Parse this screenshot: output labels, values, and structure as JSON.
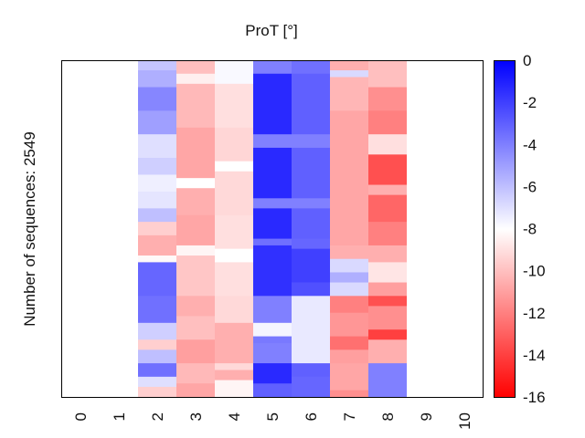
{
  "chart_data": {
    "type": "heatmap",
    "title": "ProT [°]",
    "xlabel": "",
    "ylabel": "Number of sequences: 2549",
    "x_tick_labels": [
      "0",
      "1",
      "2",
      "3",
      "4",
      "5",
      "6",
      "7",
      "8",
      "9",
      "10"
    ],
    "colorbar": {
      "min": -16,
      "max": 0,
      "ticks": [
        "0",
        "-2",
        "-4",
        "-6",
        "-8",
        "-10",
        "-12",
        "-14",
        "-16"
      ],
      "tick_values": [
        0,
        -2,
        -4,
        -6,
        -8,
        -10,
        -12,
        -14,
        -16
      ],
      "colormap": [
        "#ff0000",
        "#ffffff",
        "#0000ff"
      ]
    },
    "n_sequences": 2549,
    "columns": [
      {
        "x": 0,
        "segments": []
      },
      {
        "x": 1,
        "segments": []
      },
      {
        "x": 2,
        "segments": [
          {
            "from": 0.0,
            "to": 0.03,
            "value": -6.2
          },
          {
            "from": 0.03,
            "to": 0.08,
            "value": -5.5
          },
          {
            "from": 0.08,
            "to": 0.15,
            "value": -4.2
          },
          {
            "from": 0.15,
            "to": 0.22,
            "value": -5.0
          },
          {
            "from": 0.22,
            "to": 0.29,
            "value": -7.0
          },
          {
            "from": 0.29,
            "to": 0.34,
            "value": -6.5
          },
          {
            "from": 0.34,
            "to": 0.39,
            "value": -7.5
          },
          {
            "from": 0.39,
            "to": 0.44,
            "value": -7.2
          },
          {
            "from": 0.44,
            "to": 0.48,
            "value": -6.0
          },
          {
            "from": 0.48,
            "to": 0.52,
            "value": -9.5
          },
          {
            "from": 0.52,
            "to": 0.58,
            "value": -10.5
          },
          {
            "from": 0.58,
            "to": 0.6,
            "value": -8.2
          },
          {
            "from": 0.6,
            "to": 0.7,
            "value": -3.2
          },
          {
            "from": 0.7,
            "to": 0.78,
            "value": -3.5
          },
          {
            "from": 0.78,
            "to": 0.83,
            "value": -6.5
          },
          {
            "from": 0.83,
            "to": 0.86,
            "value": -9.5
          },
          {
            "from": 0.86,
            "to": 0.9,
            "value": -6.0
          },
          {
            "from": 0.9,
            "to": 0.94,
            "value": -3.5
          },
          {
            "from": 0.94,
            "to": 0.97,
            "value": -7.0
          },
          {
            "from": 0.97,
            "to": 1.0,
            "value": -9.5
          }
        ]
      },
      {
        "x": 3,
        "segments": [
          {
            "from": 0.0,
            "to": 0.04,
            "value": -10.0
          },
          {
            "from": 0.04,
            "to": 0.07,
            "value": -8.5
          },
          {
            "from": 0.07,
            "to": 0.2,
            "value": -10.2
          },
          {
            "from": 0.2,
            "to": 0.35,
            "value": -10.8
          },
          {
            "from": 0.35,
            "to": 0.38,
            "value": -8.0
          },
          {
            "from": 0.38,
            "to": 0.46,
            "value": -10.5
          },
          {
            "from": 0.46,
            "to": 0.55,
            "value": -10.8
          },
          {
            "from": 0.55,
            "to": 0.58,
            "value": -8.3
          },
          {
            "from": 0.58,
            "to": 0.7,
            "value": -9.8
          },
          {
            "from": 0.7,
            "to": 0.76,
            "value": -10.5
          },
          {
            "from": 0.76,
            "to": 0.83,
            "value": -10.0
          },
          {
            "from": 0.83,
            "to": 0.9,
            "value": -11.0
          },
          {
            "from": 0.9,
            "to": 0.96,
            "value": -10.2
          },
          {
            "from": 0.96,
            "to": 1.0,
            "value": -10.8
          }
        ]
      },
      {
        "x": 4,
        "segments": [
          {
            "from": 0.0,
            "to": 0.07,
            "value": -7.8
          },
          {
            "from": 0.07,
            "to": 0.2,
            "value": -9.0
          },
          {
            "from": 0.2,
            "to": 0.3,
            "value": -9.3
          },
          {
            "from": 0.3,
            "to": 0.33,
            "value": -8.0
          },
          {
            "from": 0.33,
            "to": 0.46,
            "value": -9.2
          },
          {
            "from": 0.46,
            "to": 0.56,
            "value": -9.0
          },
          {
            "from": 0.56,
            "to": 0.6,
            "value": -8.0
          },
          {
            "from": 0.6,
            "to": 0.7,
            "value": -9.0
          },
          {
            "from": 0.7,
            "to": 0.78,
            "value": -9.2
          },
          {
            "from": 0.78,
            "to": 0.9,
            "value": -10.5
          },
          {
            "from": 0.9,
            "to": 0.92,
            "value": -9.2
          },
          {
            "from": 0.92,
            "to": 0.95,
            "value": -10.5
          },
          {
            "from": 0.95,
            "to": 1.0,
            "value": -8.3
          }
        ]
      },
      {
        "x": 5,
        "segments": [
          {
            "from": 0.0,
            "to": 0.04,
            "value": -4.0
          },
          {
            "from": 0.04,
            "to": 0.22,
            "value": -1.3
          },
          {
            "from": 0.22,
            "to": 0.26,
            "value": -4.0
          },
          {
            "from": 0.26,
            "to": 0.41,
            "value": -1.3
          },
          {
            "from": 0.41,
            "to": 0.44,
            "value": -4.0
          },
          {
            "from": 0.44,
            "to": 0.53,
            "value": -1.3
          },
          {
            "from": 0.53,
            "to": 0.55,
            "value": -3.5
          },
          {
            "from": 0.55,
            "to": 0.7,
            "value": -1.5
          },
          {
            "from": 0.7,
            "to": 0.78,
            "value": -4.0
          },
          {
            "from": 0.78,
            "to": 0.82,
            "value": -7.7
          },
          {
            "from": 0.82,
            "to": 0.84,
            "value": -3.8
          },
          {
            "from": 0.84,
            "to": 0.9,
            "value": -4.0
          },
          {
            "from": 0.9,
            "to": 0.96,
            "value": -1.3
          },
          {
            "from": 0.96,
            "to": 1.0,
            "value": -3.0
          }
        ]
      },
      {
        "x": 6,
        "segments": [
          {
            "from": 0.0,
            "to": 0.04,
            "value": -3.5
          },
          {
            "from": 0.04,
            "to": 0.22,
            "value": -3.0
          },
          {
            "from": 0.22,
            "to": 0.26,
            "value": -4.0
          },
          {
            "from": 0.26,
            "to": 0.41,
            "value": -3.0
          },
          {
            "from": 0.41,
            "to": 0.44,
            "value": -4.0
          },
          {
            "from": 0.44,
            "to": 0.53,
            "value": -3.0
          },
          {
            "from": 0.53,
            "to": 0.56,
            "value": -3.2
          },
          {
            "from": 0.56,
            "to": 0.66,
            "value": -2.0
          },
          {
            "from": 0.66,
            "to": 0.7,
            "value": -2.5
          },
          {
            "from": 0.7,
            "to": 0.9,
            "value": -7.3
          },
          {
            "from": 0.9,
            "to": 0.94,
            "value": -3.0
          },
          {
            "from": 0.94,
            "to": 1.0,
            "value": -3.2
          }
        ]
      },
      {
        "x": 7,
        "segments": [
          {
            "from": 0.0,
            "to": 0.03,
            "value": -10.5
          },
          {
            "from": 0.03,
            "to": 0.05,
            "value": -6.8
          },
          {
            "from": 0.05,
            "to": 0.15,
            "value": -10.3
          },
          {
            "from": 0.15,
            "to": 0.26,
            "value": -10.8
          },
          {
            "from": 0.26,
            "to": 0.42,
            "value": -10.8
          },
          {
            "from": 0.42,
            "to": 0.55,
            "value": -10.8
          },
          {
            "from": 0.55,
            "to": 0.59,
            "value": -10.5
          },
          {
            "from": 0.59,
            "to": 0.63,
            "value": -6.8
          },
          {
            "from": 0.63,
            "to": 0.66,
            "value": -5.5
          },
          {
            "from": 0.66,
            "to": 0.7,
            "value": -6.8
          },
          {
            "from": 0.7,
            "to": 0.75,
            "value": -12.0
          },
          {
            "from": 0.75,
            "to": 0.82,
            "value": -11.3
          },
          {
            "from": 0.82,
            "to": 0.86,
            "value": -12.5
          },
          {
            "from": 0.86,
            "to": 0.9,
            "value": -11.0
          },
          {
            "from": 0.9,
            "to": 0.98,
            "value": -10.8
          },
          {
            "from": 0.98,
            "to": 1.0,
            "value": -11.5
          }
        ]
      },
      {
        "x": 8,
        "segments": [
          {
            "from": 0.0,
            "to": 0.08,
            "value": -10.0
          },
          {
            "from": 0.08,
            "to": 0.15,
            "value": -11.5
          },
          {
            "from": 0.15,
            "to": 0.22,
            "value": -12.0
          },
          {
            "from": 0.22,
            "to": 0.28,
            "value": -9.0
          },
          {
            "from": 0.28,
            "to": 0.37,
            "value": -13.5
          },
          {
            "from": 0.37,
            "to": 0.4,
            "value": -10.5
          },
          {
            "from": 0.4,
            "to": 0.48,
            "value": -12.8
          },
          {
            "from": 0.48,
            "to": 0.55,
            "value": -12.0
          },
          {
            "from": 0.55,
            "to": 0.6,
            "value": -10.5
          },
          {
            "from": 0.6,
            "to": 0.66,
            "value": -8.8
          },
          {
            "from": 0.66,
            "to": 0.7,
            "value": -11.0
          },
          {
            "from": 0.7,
            "to": 0.73,
            "value": -13.5
          },
          {
            "from": 0.73,
            "to": 0.8,
            "value": -11.5
          },
          {
            "from": 0.8,
            "to": 0.83,
            "value": -14.0
          },
          {
            "from": 0.83,
            "to": 0.9,
            "value": -10.5
          },
          {
            "from": 0.9,
            "to": 1.0,
            "value": -4.0
          }
        ]
      },
      {
        "x": 9,
        "segments": []
      },
      {
        "x": 10,
        "segments": []
      }
    ]
  }
}
